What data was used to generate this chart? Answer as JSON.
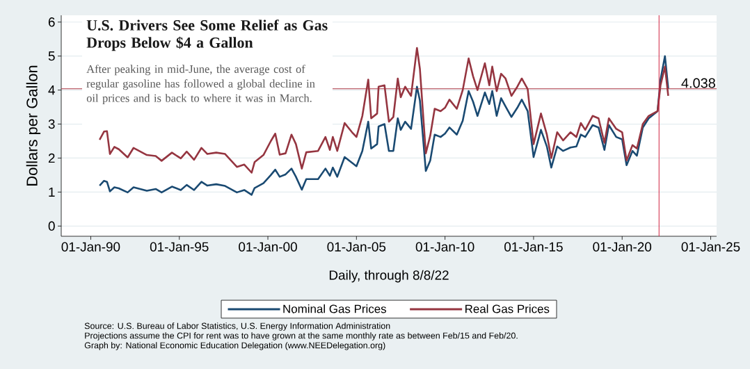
{
  "chart_data": {
    "type": "line",
    "xlabel": "Daily, through 8/8/22",
    "ylabel": "Dollars per Gallon",
    "annotations": [
      "U.S. Drivers See Some Relief as Gas Drops Below $4 a Gallon",
      "After peaking in mid-June, the average cost of regular gasoline has followed a global decline in oil prices and is back to where it was in March.",
      "Source: U.S. Bureau of Labor Statistics,  U.S. Energy Information Administration",
      "Projections assume the CPI for rent was to have grown at the same monthly rate as between Feb/15 and Feb/20.",
      "Graph by: National Economic Education Delegation (www.NEEDelegation.org)"
    ],
    "x": [
      "1990-07",
      "1990-10",
      "1990-12",
      "1991-02",
      "1991-05",
      "1991-08",
      "1992-02",
      "1992-06",
      "1993-03",
      "1993-09",
      "1994-01",
      "1994-08",
      "1995-02",
      "1995-06",
      "1995-11",
      "1996-04",
      "1996-08",
      "1997-02",
      "1997-08",
      "1998-04",
      "1998-09",
      "1999-02",
      "1999-04",
      "1999-10",
      "2000-03",
      "2000-06",
      "2000-09",
      "2001-01",
      "2001-05",
      "2001-08",
      "2001-12",
      "2002-03",
      "2002-11",
      "2003-04",
      "2003-07",
      "2003-09",
      "2003-12",
      "2004-05",
      "2004-10",
      "2005-01",
      "2005-05",
      "2005-09",
      "2005-11",
      "2006-03",
      "2006-04",
      "2006-08",
      "2006-11",
      "2007-02",
      "2007-05",
      "2007-07",
      "2007-10",
      "2008-02",
      "2008-06",
      "2008-08",
      "2008-12",
      "2009-03",
      "2009-06",
      "2009-10",
      "2010-01",
      "2010-04",
      "2010-09",
      "2011-01",
      "2011-05",
      "2011-08",
      "2011-11",
      "2012-04",
      "2012-07",
      "2012-09",
      "2012-12",
      "2013-03",
      "2013-06",
      "2013-10",
      "2014-02",
      "2014-05",
      "2014-09",
      "2015-01",
      "2015-06",
      "2015-10",
      "2016-01",
      "2016-05",
      "2016-09",
      "2017-02",
      "2017-06",
      "2017-09",
      "2017-12",
      "2018-05",
      "2018-09",
      "2019-01",
      "2019-04",
      "2019-09",
      "2020-01",
      "2020-04",
      "2020-08",
      "2020-11",
      "2021-03",
      "2021-07",
      "2022-01",
      "2022-03",
      "2022-06",
      "2022-08-08"
    ],
    "series": [
      {
        "name": "Nominal Gas Prices",
        "color": "#1a4a72",
        "values": [
          1.19,
          1.33,
          1.3,
          1.02,
          1.14,
          1.11,
          0.99,
          1.14,
          1.04,
          1.09,
          0.99,
          1.16,
          1.06,
          1.21,
          1.06,
          1.3,
          1.19,
          1.23,
          1.18,
          0.99,
          1.06,
          0.92,
          1.12,
          1.26,
          1.5,
          1.66,
          1.45,
          1.52,
          1.69,
          1.45,
          1.07,
          1.38,
          1.38,
          1.69,
          1.48,
          1.72,
          1.45,
          2.03,
          1.86,
          1.76,
          2.21,
          3.07,
          2.28,
          2.41,
          2.93,
          3.0,
          2.21,
          2.21,
          3.17,
          2.83,
          3.07,
          2.86,
          4.1,
          3.69,
          1.62,
          1.93,
          2.69,
          2.62,
          2.72,
          2.9,
          2.69,
          3.1,
          3.97,
          3.66,
          3.24,
          3.93,
          3.59,
          3.97,
          3.24,
          3.76,
          3.52,
          3.21,
          3.48,
          3.72,
          3.38,
          2.03,
          2.83,
          2.34,
          1.72,
          2.34,
          2.21,
          2.31,
          2.34,
          2.69,
          2.62,
          2.97,
          2.9,
          2.24,
          2.97,
          2.62,
          2.55,
          1.79,
          2.21,
          2.07,
          2.9,
          3.17,
          3.38,
          4.31,
          5.0,
          4.04
        ]
      },
      {
        "name": "Real Gas Prices",
        "color": "#953540",
        "values": [
          2.54,
          2.78,
          2.79,
          2.12,
          2.33,
          2.26,
          2.02,
          2.3,
          2.09,
          2.06,
          1.92,
          2.16,
          1.99,
          2.19,
          1.95,
          2.3,
          2.12,
          2.16,
          2.12,
          1.74,
          1.81,
          1.57,
          1.88,
          2.09,
          2.5,
          2.72,
          2.1,
          2.14,
          2.69,
          2.41,
          1.69,
          2.17,
          2.21,
          2.62,
          2.24,
          2.62,
          2.21,
          3.03,
          2.76,
          2.62,
          3.24,
          4.31,
          3.17,
          3.31,
          4.1,
          4.14,
          3.07,
          3.21,
          4.34,
          3.79,
          4.1,
          3.83,
          5.24,
          4.62,
          2.14,
          2.66,
          3.45,
          3.38,
          3.48,
          3.72,
          3.45,
          4.0,
          4.93,
          4.41,
          4.0,
          4.79,
          4.14,
          4.69,
          3.97,
          4.48,
          4.34,
          3.83,
          4.1,
          4.34,
          4.03,
          2.41,
          3.31,
          2.69,
          2.0,
          2.76,
          2.52,
          2.76,
          2.62,
          3.03,
          2.83,
          3.24,
          3.17,
          2.45,
          3.17,
          2.86,
          2.76,
          1.93,
          2.38,
          2.28,
          3.0,
          3.24,
          3.38,
          4.14,
          4.69,
          3.83
        ]
      }
    ],
    "xlim": [
      "1988-05",
      "2025-05"
    ],
    "xticks": [
      {
        "value": "1990-01-01",
        "label": "01-Jan-90"
      },
      {
        "value": "1995-01-01",
        "label": "01-Jan-95"
      },
      {
        "value": "2000-01-01",
        "label": "01-Jan-00"
      },
      {
        "value": "2005-01-01",
        "label": "01-Jan-05"
      },
      {
        "value": "2010-01-01",
        "label": "01-Jan-10"
      },
      {
        "value": "2015-01-01",
        "label": "01-Jan-15"
      },
      {
        "value": "2020-01-01",
        "label": "01-Jan-20"
      },
      {
        "value": "2025-01-01",
        "label": "01-Jan-25"
      }
    ],
    "ylim": [
      -0.3,
      6.2
    ],
    "yticks": [
      0,
      1,
      2,
      3,
      4,
      5,
      6
    ],
    "ref_lines": [
      {
        "axis": "y",
        "value": 4.038,
        "label": "4.038",
        "color": "#a8323e"
      },
      {
        "axis": "x",
        "value": "2022-02",
        "color": "#d0213f"
      }
    ],
    "grid": "y",
    "legend": "bottom",
    "line_style": "solid"
  }
}
